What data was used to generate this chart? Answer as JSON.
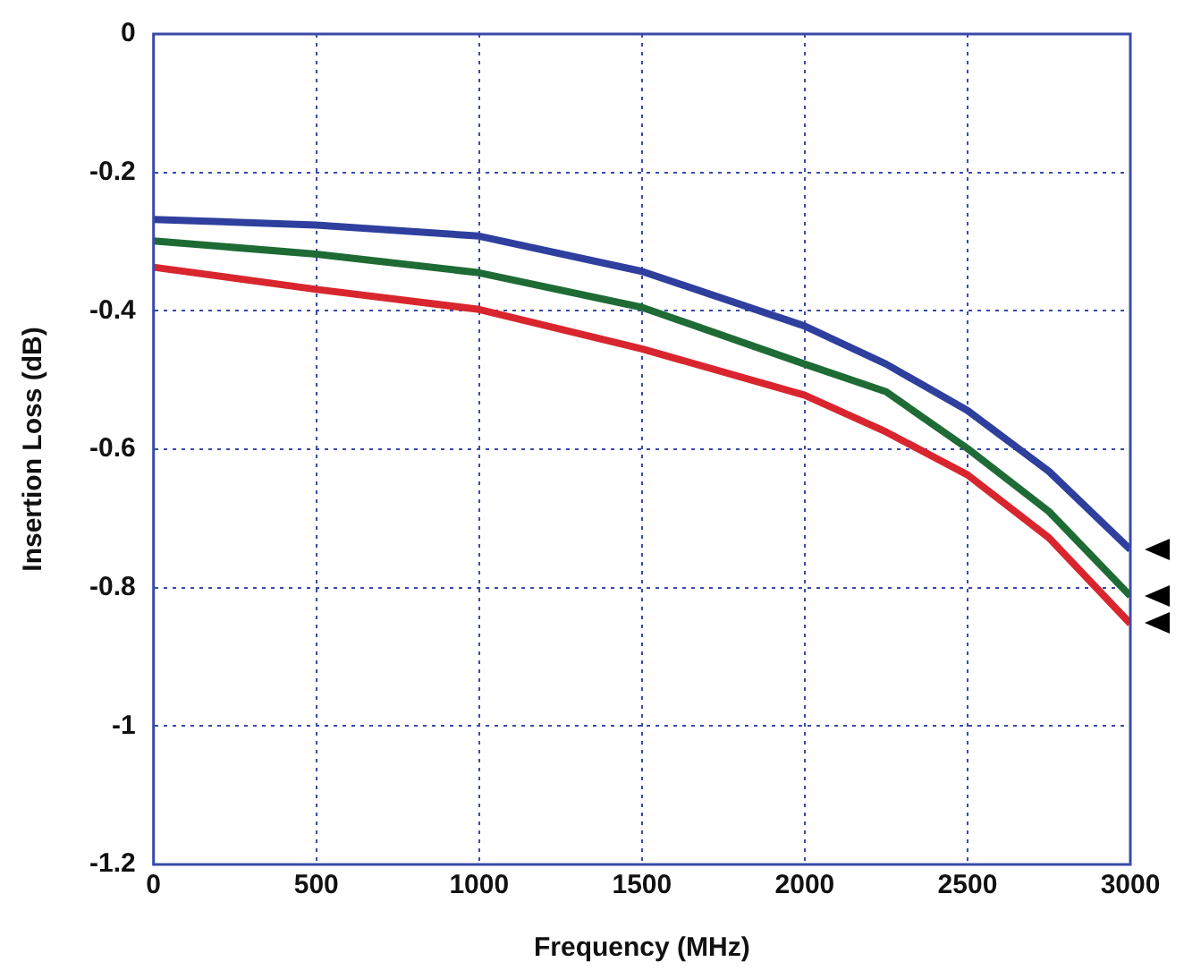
{
  "chart_data": {
    "type": "line",
    "xlabel": "Frequency (MHz)",
    "ylabel": "Insertion Loss (dB)",
    "x": [
      0,
      500,
      1000,
      1500,
      2000,
      2250,
      2500,
      2750,
      3000
    ],
    "series": [
      {
        "color": "#2e3f9e",
        "values": [
          -0.268,
          -0.276,
          -0.292,
          -0.343,
          -0.422,
          -0.477,
          -0.544,
          -0.632,
          -0.745
        ]
      },
      {
        "color": "#1f6b35",
        "values": [
          -0.299,
          -0.318,
          -0.345,
          -0.395,
          -0.477,
          -0.517,
          -0.599,
          -0.69,
          -0.812
        ]
      },
      {
        "color": "#d9262e",
        "values": [
          -0.337,
          -0.369,
          -0.398,
          -0.455,
          -0.522,
          -0.575,
          -0.637,
          -0.728,
          -0.852
        ]
      }
    ],
    "xlim": [
      0,
      3000
    ],
    "xticks": [
      0,
      500,
      1000,
      1500,
      2000,
      2500,
      3000
    ],
    "ylim": [
      -1.2,
      0
    ],
    "yticks": [
      -1.2,
      -1,
      -0.8,
      -0.6,
      -0.4,
      -0.2,
      0
    ],
    "grid": true,
    "legend": false,
    "marker": "none",
    "line_style": "solid"
  }
}
